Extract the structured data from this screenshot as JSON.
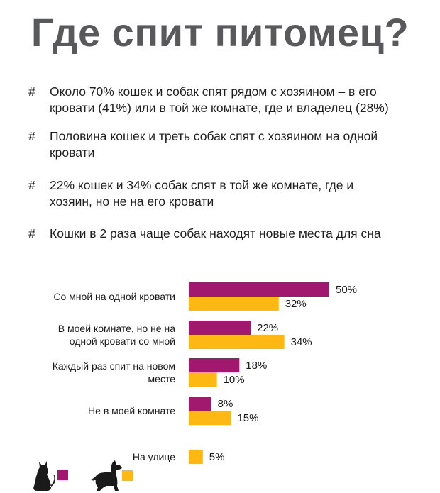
{
  "title": "Где спит питомец?",
  "bullet_mark": "#",
  "bullets": [
    {
      "lines": [
        "Около 70% кошек и собак спят рядом с хозяином – в его",
        "кровати (41%) или в той же комнате, где и  владелец (28%)"
      ]
    },
    {
      "lines": [
        "Половина кошек и треть собак спят с хозяином на одной",
        "кровати"
      ]
    },
    {
      "lines": [
        "22% кошек и 34% собак спят в той же комнате, где и",
        "хозяин, но не на его кровати"
      ]
    },
    {
      "lines": [
        "Кошки в 2 раза чаще собак находят новые места для сна"
      ]
    }
  ],
  "chart_data": {
    "type": "bar",
    "orientation": "horizontal",
    "categories": [
      [
        "Со мной на одной кровати"
      ],
      [
        "В моей комнате, но не на",
        "одной кровати со мной"
      ],
      [
        "Каждый раз спит на новом",
        "месте"
      ],
      [
        "Не в моей комнате"
      ],
      [
        "На улице"
      ]
    ],
    "series": [
      {
        "icon": "cat-icon",
        "color": "#a0196e",
        "values": [
          50,
          22,
          18,
          8,
          null
        ]
      },
      {
        "icon": "dog-icon",
        "color": "#fdb813",
        "values": [
          32,
          34,
          10,
          15,
          5
        ]
      }
    ],
    "value_labels": [
      [
        "50%",
        "22%",
        "18%",
        "8%",
        null
      ],
      [
        "32%",
        "34%",
        "10%",
        "15%",
        "5%"
      ]
    ],
    "unit": "%",
    "legend": "bottom-left",
    "grid": false,
    "xlim": [
      0,
      50
    ]
  }
}
